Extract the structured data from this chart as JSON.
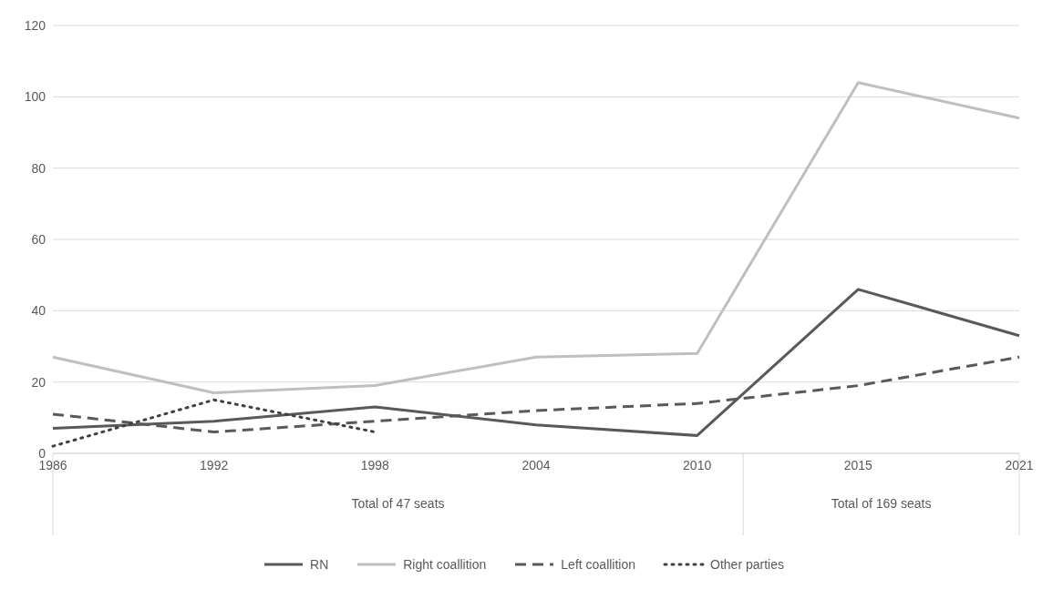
{
  "chart_data": {
    "type": "line",
    "categories": [
      "1986",
      "1992",
      "1998",
      "2004",
      "2010",
      "2015",
      "2021"
    ],
    "series": [
      {
        "name": "RN",
        "color": "#595959",
        "line_style": "solid",
        "values": [
          7,
          9,
          13,
          8,
          5,
          46,
          33
        ]
      },
      {
        "name": "Right coallition",
        "color": "#bfbfbf",
        "line_style": "solid",
        "values": [
          27,
          17,
          19,
          27,
          28,
          104,
          94
        ]
      },
      {
        "name": "Left coallition",
        "color": "#595959",
        "line_style": "dashed",
        "values": [
          11,
          6,
          9,
          12,
          14,
          19,
          27
        ]
      },
      {
        "name": "Other parties",
        "color": "#404040",
        "line_style": "dotted",
        "values": [
          2,
          15,
          6,
          null,
          null,
          null,
          null
        ]
      }
    ],
    "ylim": [
      0,
      120
    ],
    "yticks": [
      0,
      20,
      40,
      60,
      80,
      100,
      120
    ],
    "grid": "y",
    "legend": "bottom",
    "marker": "none",
    "annotations": [
      "Total of 47 seats",
      "Total of 169 seats"
    ]
  }
}
